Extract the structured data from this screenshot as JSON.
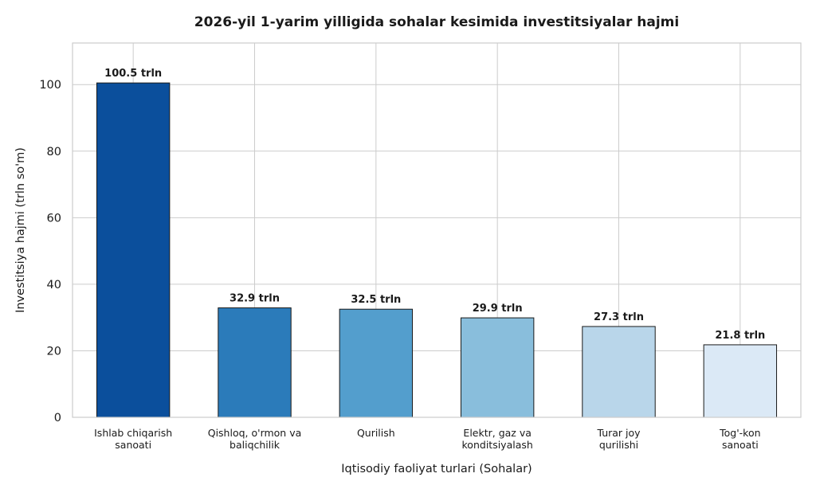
{
  "chart_data": {
    "type": "bar",
    "title": "2026-yil 1-yarim yilligida sohalar kesimida investitsiyalar hajmi",
    "xlabel": "Iqtisodiy faoliyat turlari (Sohalar)",
    "ylabel": "Investitsiya hajmi (trln so'm)",
    "categories": [
      [
        "Ishlab chiqarish",
        "sanoati"
      ],
      [
        "Qishloq, o'rmon va",
        "baliqchilik"
      ],
      [
        "Qurilish"
      ],
      [
        "Elektr, gaz va",
        "konditsiyalash"
      ],
      [
        "Turar joy",
        "qurilishi"
      ],
      [
        "Tog'-kon",
        "sanoati"
      ]
    ],
    "values": [
      100.5,
      32.9,
      32.5,
      29.9,
      27.3,
      21.8
    ],
    "data_labels": [
      "100.5 trln",
      "32.9 trln",
      "32.5 trln",
      "29.9 trln",
      "27.3 trln",
      "21.8 trln"
    ],
    "colors": [
      "#0b4f9c",
      "#2b7bba",
      "#539ecd",
      "#89bedc",
      "#b9d6ea",
      "#dbe9f6"
    ],
    "ylim": [
      0,
      112.5
    ],
    "yticks": [
      0,
      20,
      40,
      60,
      80,
      100
    ],
    "grid": true,
    "legend": "none"
  }
}
